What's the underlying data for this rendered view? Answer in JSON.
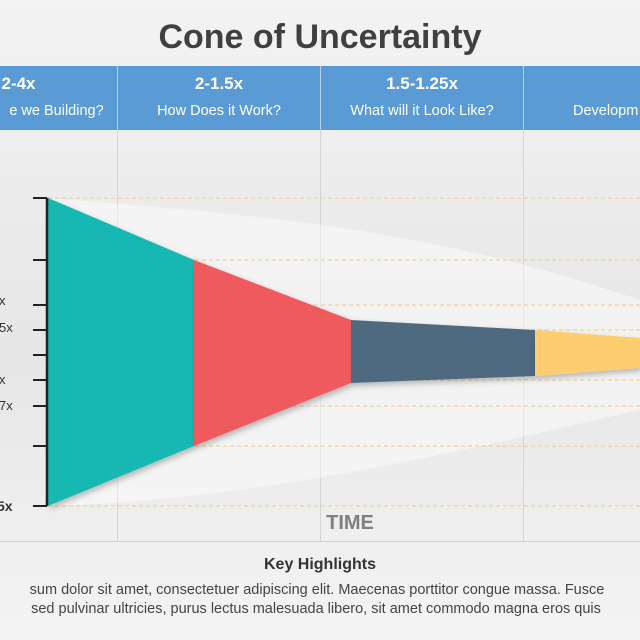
{
  "title": "Cone of Uncertainty",
  "phases": [
    {
      "ratio": "2-4x",
      "question": "e we Building?"
    },
    {
      "ratio": "2-1.5x",
      "question": "How Does it Work?"
    },
    {
      "ratio": "1.5-1.25x",
      "question": "What will it Look Like?"
    },
    {
      "ratio": "",
      "question": "Developm"
    }
  ],
  "y_tick_labels": [
    {
      "text": "x",
      "bold": false
    },
    {
      "text": "5x",
      "bold": false
    },
    {
      "text": "x",
      "bold": false
    },
    {
      "text": "7x",
      "bold": false
    },
    {
      "text": "5x",
      "bold": true
    }
  ],
  "x_axis_label": "TIME",
  "segment_colors": [
    "#19b8b1",
    "#ef5a5e",
    "#4f6a7f",
    "#fccd6e"
  ],
  "key_highlights": {
    "title": "Key Highlights",
    "lines": [
      "sum dolor sit amet, consectetuer adipiscing elit. Maecenas porttitor congue massa. Fusce",
      " sed pulvinar ultricies, purus lectus malesuada libero, sit amet commodo magna eros quis"
    ]
  }
}
